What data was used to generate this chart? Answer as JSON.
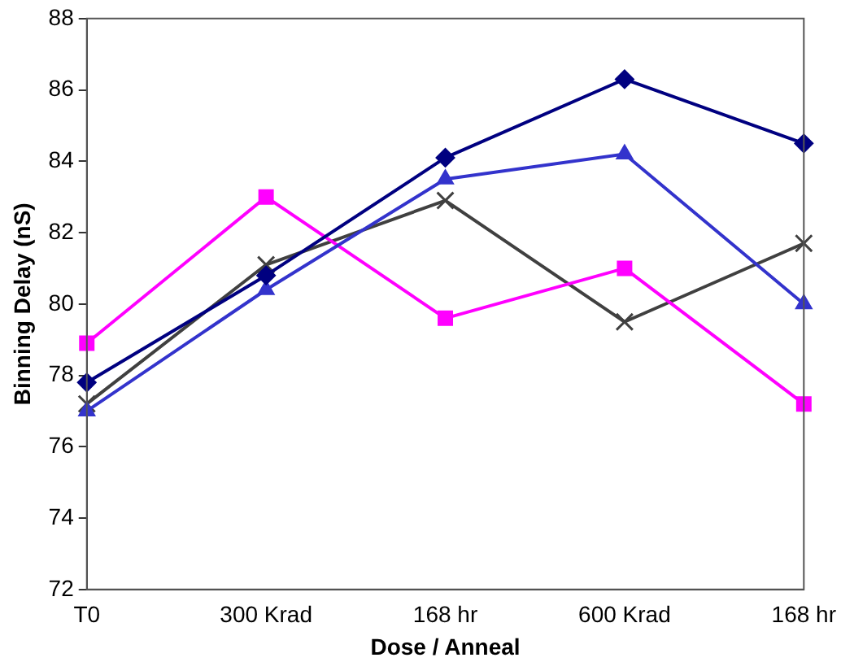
{
  "chart_data": {
    "type": "line",
    "xlabel": "Dose / Anneal",
    "ylabel": "Binning Delay (nS)",
    "categories": [
      "T0",
      "300 Krad",
      "168 hr",
      "600 Krad",
      "168 hr"
    ],
    "ylim": [
      72,
      88
    ],
    "yticks": [
      72,
      74,
      76,
      78,
      80,
      82,
      84,
      86,
      88
    ],
    "grid": false,
    "legend": false,
    "series": [
      {
        "color": "#000080",
        "marker": "diamond",
        "values": [
          77.8,
          80.8,
          84.1,
          86.3,
          84.5
        ]
      },
      {
        "color": "#3333cc",
        "marker": "triangle",
        "values": [
          77.0,
          80.4,
          83.5,
          84.2,
          80.0
        ]
      },
      {
        "color": "#ff00ff",
        "marker": "square",
        "values": [
          78.9,
          83.0,
          79.6,
          81.0,
          77.2
        ]
      },
      {
        "color": "#404040",
        "marker": "cross",
        "values": [
          77.2,
          81.1,
          82.9,
          79.5,
          81.7
        ]
      }
    ]
  }
}
